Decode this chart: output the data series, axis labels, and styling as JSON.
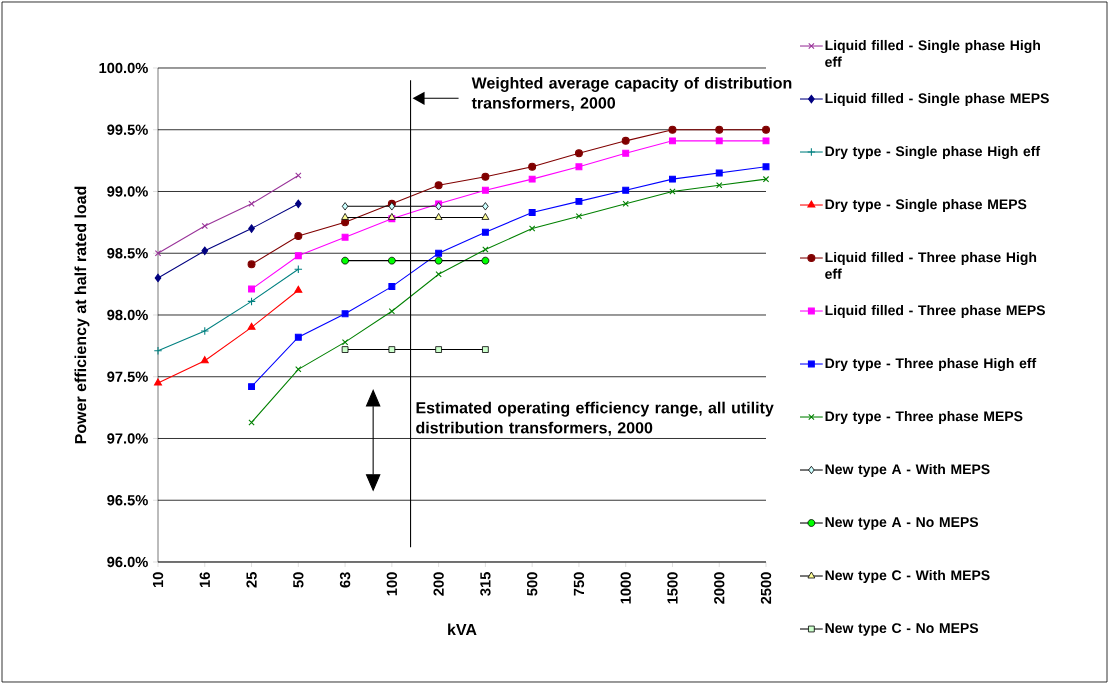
{
  "chart_data": {
    "type": "line",
    "xlabel": "kVA",
    "ylabel": "Power efficiency at half rated load",
    "categories": [
      "10",
      "16",
      "25",
      "50",
      "63",
      "100",
      "200",
      "315",
      "500",
      "750",
      "1000",
      "1500",
      "2000",
      "2500"
    ],
    "ylim": [
      96,
      100
    ],
    "yticks": [
      {
        "value": 96,
        "label": "96.0%"
      },
      {
        "value": 96.5,
        "label": "96.5%"
      },
      {
        "value": 97,
        "label": "97.0%"
      },
      {
        "value": 97.5,
        "label": "97.5%"
      },
      {
        "value": 98,
        "label": "98.0%"
      },
      {
        "value": 98.5,
        "label": "98.5%"
      },
      {
        "value": 99,
        "label": "99.0%"
      },
      {
        "value": 99.5,
        "label": "99.5%"
      },
      {
        "value": 100,
        "label": "100.0%"
      }
    ],
    "grid": "y",
    "legend": "right",
    "series": [
      {
        "name": "Liquid filled -  Single phase High eff",
        "color": "#993399",
        "marker": "cross",
        "values": [
          98.5,
          98.72,
          98.9,
          99.13,
          null,
          null,
          null,
          null,
          null,
          null,
          null,
          null,
          null,
          null
        ]
      },
      {
        "name": "Liquid filled -  Single phase MEPS",
        "color": "#000080",
        "marker": "diamond",
        "values": [
          98.3,
          98.52,
          98.7,
          98.9,
          null,
          null,
          null,
          null,
          null,
          null,
          null,
          null,
          null,
          null
        ]
      },
      {
        "name": "Dry type -  Single phase High eff",
        "color": "#008080",
        "marker": "plus",
        "values": [
          97.71,
          97.87,
          98.11,
          98.37,
          null,
          null,
          null,
          null,
          null,
          null,
          null,
          null,
          null,
          null
        ]
      },
      {
        "name": "Dry type -  Single phase MEPS",
        "color": "#ff0000",
        "marker": "triangle",
        "values": [
          97.45,
          97.63,
          97.9,
          98.2,
          null,
          null,
          null,
          null,
          null,
          null,
          null,
          null,
          null,
          null
        ]
      },
      {
        "name": "Liquid filled -  Three phase High eff",
        "color": "#800000",
        "marker": "circle",
        "values": [
          null,
          null,
          98.41,
          98.64,
          98.75,
          98.9,
          99.05,
          99.12,
          99.2,
          99.31,
          99.41,
          99.5,
          99.5,
          99.5
        ]
      },
      {
        "name": "Liquid filled -  Three phase MEPS",
        "color": "#ff00ff",
        "marker": "square",
        "values": [
          null,
          null,
          98.21,
          98.48,
          98.63,
          98.78,
          98.9,
          99.01,
          99.1,
          99.2,
          99.31,
          99.41,
          99.41,
          99.41
        ]
      },
      {
        "name": "Dry type -  Three phase High eff",
        "color": "#0000ff",
        "marker": "square",
        "values": [
          null,
          null,
          97.42,
          97.82,
          98.01,
          98.23,
          98.5,
          98.67,
          98.83,
          98.92,
          99.01,
          99.1,
          99.15,
          99.2
        ]
      },
      {
        "name": "Dry type -  Three phase MEPS",
        "color": "#008000",
        "marker": "cross",
        "values": [
          null,
          null,
          97.13,
          97.56,
          97.78,
          98.03,
          98.33,
          98.53,
          98.7,
          98.8,
          98.9,
          99.0,
          99.05,
          99.1
        ]
      },
      {
        "name": "New type A - With MEPS",
        "color": "#ccffff",
        "marker": "diamond",
        "values": [
          null,
          null,
          null,
          null,
          98.88,
          98.88,
          98.88,
          98.88,
          null,
          null,
          null,
          null,
          null,
          null
        ]
      },
      {
        "name": "New type A - No MEPS",
        "color": "#00ff00",
        "marker": "circle",
        "values": [
          null,
          null,
          null,
          null,
          98.44,
          98.44,
          98.44,
          98.44,
          null,
          null,
          null,
          null,
          null,
          null
        ]
      },
      {
        "name": "New type C - With MEPS",
        "color": "#ffff99",
        "marker": "triangle",
        "values": [
          null,
          null,
          null,
          null,
          98.79,
          98.79,
          98.79,
          98.79,
          null,
          null,
          null,
          null,
          null,
          null
        ]
      },
      {
        "name": "New type C - No MEPS",
        "color": "#ccffcc",
        "marker": "square",
        "values": [
          null,
          null,
          null,
          null,
          97.72,
          97.72,
          97.72,
          97.72,
          null,
          null,
          null,
          null,
          null,
          null
        ]
      }
    ],
    "annotations": [
      "Weighted average capacity of distribution transformers, 2000",
      "Estimated operating efficiency range, all utility distribution transformers, 2000"
    ]
  }
}
